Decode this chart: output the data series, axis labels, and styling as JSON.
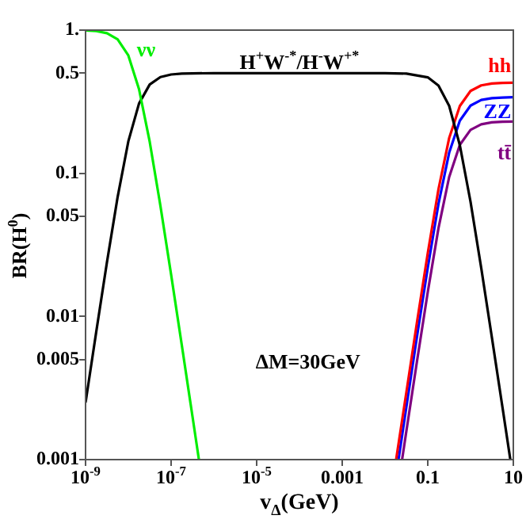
{
  "chart_data": {
    "type": "line",
    "xlabel": "v$_{Δ}$(GeV)",
    "ylabel": "BR(H$^{0}$)",
    "log": "xy",
    "grid": false,
    "legend": false,
    "marker": "none",
    "line_style": "solid",
    "xlim": [
      1e-09,
      10
    ],
    "ylim": [
      0.001,
      1
    ],
    "xticks": [
      {
        "value": 1e-09,
        "label": "10$^{-9}$"
      },
      {
        "value": 1e-07,
        "label": "10$^{-7}$"
      },
      {
        "value": 1e-05,
        "label": "10$^{-5}$"
      },
      0.001,
      0.1,
      10
    ],
    "yticks": [
      0.001,
      0.005,
      0.01,
      0.05,
      0.1,
      0.5,
      {
        "value": 1,
        "label": "1."
      }
    ],
    "annotations": [
      "ΔM=30GeV"
    ],
    "series": [
      {
        "name": "νν",
        "color": "#00ee00",
        "x": [
          1e-09,
          1.778e-09,
          3.162e-09,
          5.623e-09,
          1e-08,
          1.778e-08,
          3.162e-08,
          5.623e-08,
          1e-07,
          1.778e-07,
          3.162e-07,
          4.467e-07
        ],
        "values": [
          0.995,
          0.984,
          0.952,
          0.863,
          0.666,
          0.387,
          0.166,
          0.0593,
          0.0196,
          0.0063,
          0.002,
          0.001
        ]
      },
      {
        "name": "H$^{+}$W$^{-*}$/H$^{-}$W$^{+*}$",
        "color": "#000000",
        "x": [
          1e-09,
          1.778e-09,
          3.162e-09,
          5.623e-09,
          1e-08,
          1.778e-08,
          3.162e-08,
          5.623e-08,
          1e-07,
          1.778e-07,
          3.162e-07,
          1e-06,
          0.0001,
          0.01,
          0.0316,
          0.1,
          0.178,
          0.316,
          0.562,
          1,
          1.778,
          3.162,
          5.623,
          8.51
        ],
        "values": [
          0.0025,
          0.0078,
          0.0239,
          0.0683,
          0.167,
          0.307,
          0.417,
          0.47,
          0.49,
          0.497,
          0.499,
          0.5,
          0.5,
          0.5,
          0.497,
          0.468,
          0.41,
          0.296,
          0.157,
          0.0631,
          0.0218,
          0.0071,
          0.00228,
          0.001
        ]
      },
      {
        "name": "hh",
        "color": "#ff0000",
        "x": [
          0.0182,
          0.0316,
          0.0562,
          0.1,
          0.178,
          0.316,
          0.562,
          1,
          1.778,
          3.162,
          5.623,
          10
        ],
        "values": [
          0.001,
          0.00295,
          0.0092,
          0.0277,
          0.0774,
          0.176,
          0.295,
          0.376,
          0.411,
          0.424,
          0.428,
          0.429
        ]
      },
      {
        "name": "ZZ",
        "color": "#0000ff",
        "x": [
          0.0207,
          0.0316,
          0.0562,
          0.1,
          0.178,
          0.316,
          0.562,
          1,
          1.778,
          3.162,
          5.623,
          10
        ],
        "values": [
          0.001,
          0.00233,
          0.0073,
          0.0219,
          0.0612,
          0.139,
          0.233,
          0.297,
          0.325,
          0.335,
          0.338,
          0.34
        ]
      },
      {
        "name": "tt̄",
        "color": "#800080",
        "x": [
          0.0251,
          0.0316,
          0.0562,
          0.1,
          0.178,
          0.316,
          0.562,
          1,
          1.778,
          3.162,
          5.623,
          10
        ],
        "values": [
          0.001,
          0.00158,
          0.0049,
          0.0148,
          0.0414,
          0.094,
          0.158,
          0.201,
          0.22,
          0.227,
          0.229,
          0.23
        ]
      }
    ]
  }
}
